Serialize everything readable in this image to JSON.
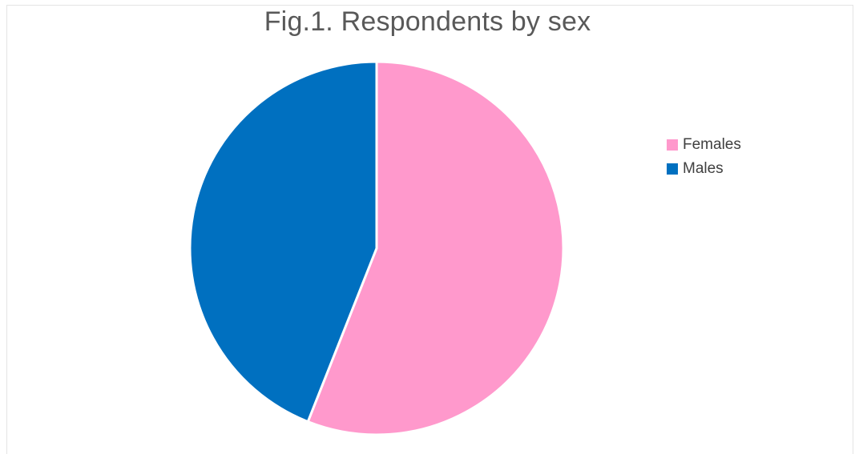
{
  "chart_data": {
    "type": "pie",
    "title": "Fig.1. Respondents by sex",
    "categories": [
      "Females",
      "Males"
    ],
    "values": [
      56,
      44
    ],
    "colors": [
      "#ff99cc",
      "#0070c0"
    ],
    "legend_position": "right"
  }
}
